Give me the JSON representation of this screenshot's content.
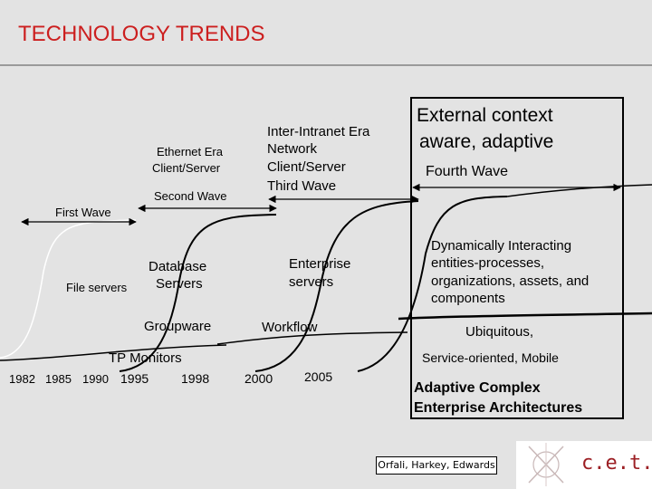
{
  "title": "TECHNOLOGY TRENDS",
  "waves": {
    "first": {
      "label": "File servers",
      "wave": "First Wave"
    },
    "second": {
      "era": [
        "Ethernet Era",
        "Client/Server"
      ],
      "wave": "Second Wave",
      "items": [
        "Database",
        "Servers",
        "Groupware",
        "TP Monitors"
      ]
    },
    "third": {
      "era": [
        "Inter-Intranet Era",
        "Network",
        "Client/Server",
        "Third Wave"
      ],
      "items": [
        "Enterprise",
        "servers",
        "Workflow"
      ]
    },
    "fourth": {
      "heading": [
        "External context",
        "aware, adaptive"
      ],
      "wave": "Fourth Wave",
      "items": [
        "Dynamically Interacting",
        "entities-processes,",
        "organizations, assets, and",
        "components"
      ],
      "ubiquitous": "Ubiquitous,",
      "service": "Service-oriented, Mobile",
      "adaptive": [
        "Adaptive Complex",
        "Enterprise Architectures"
      ]
    }
  },
  "years": [
    "1982",
    "1985",
    "1990",
    "1995",
    "1998",
    "2000",
    "2005"
  ],
  "citation": "Orfali, Harkey, Edwards",
  "logo": {
    "text": "c.e.t.i"
  }
}
